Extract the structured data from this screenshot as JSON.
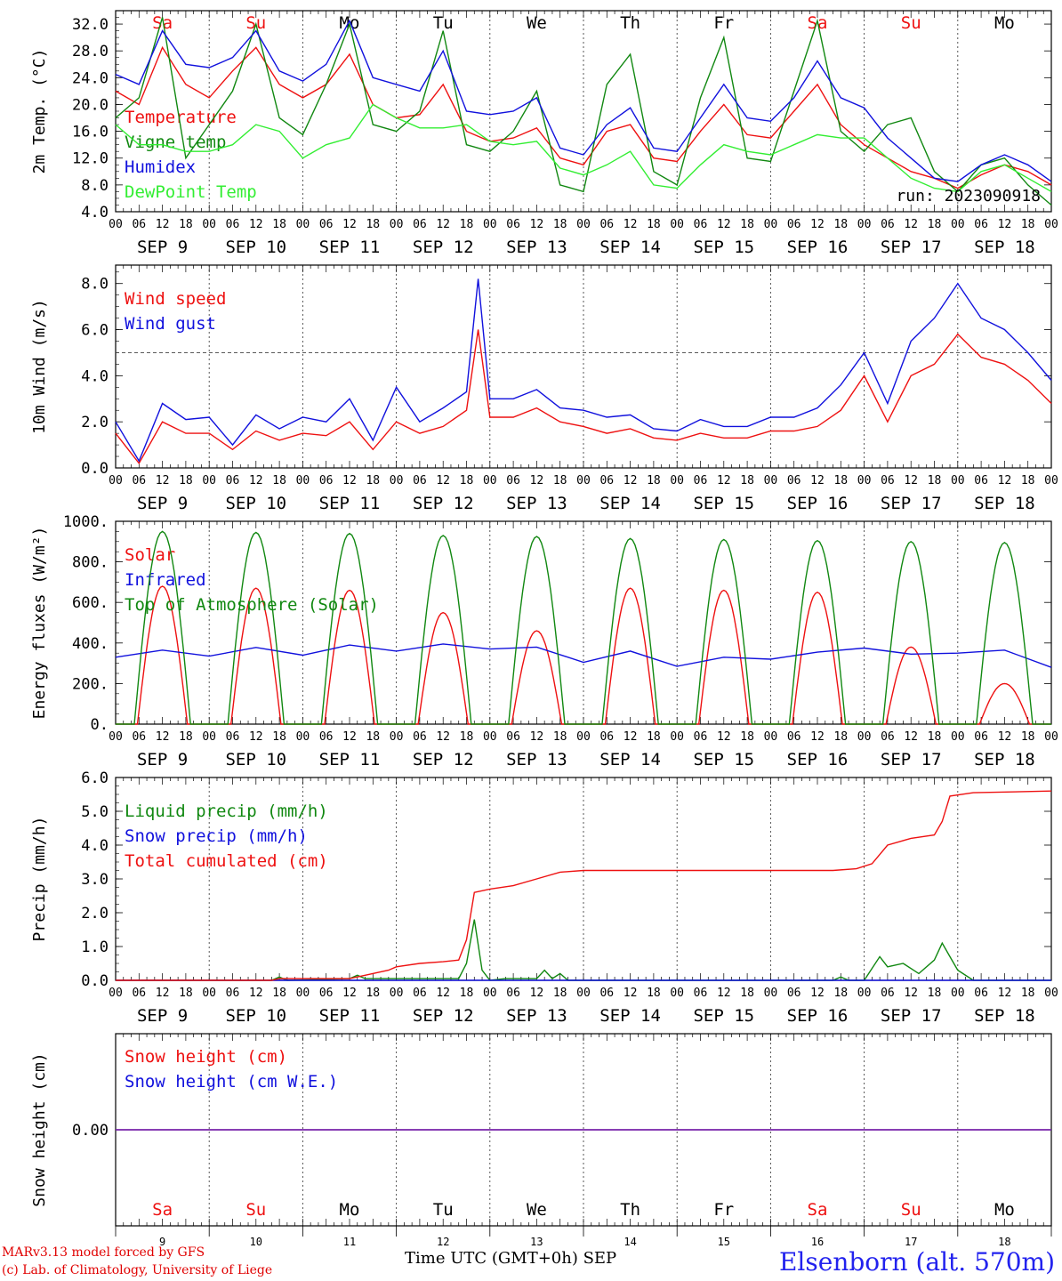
{
  "footer": {
    "model": "MARv3.13 model forced by GFS",
    "copyright": "(c) Lab. of Climatology, University of Liege",
    "time_axis": "Time UTC (GMT+0h) SEP",
    "station": "Elsenborn (alt. 570m)"
  },
  "colors": {
    "red": "#ee1111",
    "dark_green": "#118811",
    "blue": "#1111dd",
    "light_green": "#33ee33",
    "purple": "#7722aa"
  },
  "days": [
    "Sa",
    "Su",
    "Mo",
    "Tu",
    "We",
    "Th",
    "Fr",
    "Sa",
    "Su",
    "Mo"
  ],
  "weekend_flags": [
    true,
    true,
    false,
    false,
    false,
    false,
    false,
    true,
    true,
    false
  ],
  "dates": [
    "SEP  9",
    "SEP 10",
    "SEP 11",
    "SEP 12",
    "SEP 13",
    "SEP 14",
    "SEP 15",
    "SEP 16",
    "SEP 17",
    "SEP 18"
  ],
  "day_numbers": [
    "9",
    "10",
    "11",
    "12",
    "13",
    "14",
    "15",
    "16",
    "17",
    "18"
  ],
  "hour_ticks": [
    "00",
    "06",
    "12",
    "18"
  ],
  "chart_data": [
    {
      "type": "line",
      "ylabel": "2m Temp. (°C)",
      "ylim": [
        4,
        34
      ],
      "ytick_labels": [
        "4.0",
        "8.0",
        "12.0",
        "16.0",
        "20.0",
        "24.0",
        "28.0",
        "32.0"
      ],
      "annotation": "run: 2023090918",
      "x_unit": "hours since SEP 9 00 UTC",
      "series": [
        {
          "name": "Temperature",
          "color": "#ee1111",
          "x": [
            0,
            6,
            12,
            18,
            24,
            30,
            36,
            42,
            48,
            54,
            60,
            66,
            72,
            78,
            84,
            90,
            96,
            102,
            108,
            114,
            120,
            126,
            132,
            138,
            144,
            150,
            156,
            162,
            168,
            174,
            180,
            186,
            192,
            198,
            204,
            210,
            216,
            222,
            228,
            234,
            240
          ],
          "values": [
            22,
            20,
            28.5,
            23,
            21,
            25,
            28.5,
            23,
            21,
            23,
            27.5,
            20,
            18,
            18.5,
            23,
            16,
            14.5,
            15,
            16.5,
            12,
            11,
            16,
            17,
            12,
            11.5,
            16,
            20,
            15.5,
            15,
            19,
            23,
            17,
            14,
            12,
            10,
            9,
            7.5,
            9.5,
            11,
            10,
            8
          ]
        },
        {
          "name": "Vigne temp",
          "color": "#118811",
          "x": [
            0,
            6,
            12,
            18,
            24,
            30,
            36,
            42,
            48,
            54,
            60,
            66,
            72,
            78,
            84,
            90,
            96,
            102,
            108,
            114,
            120,
            126,
            132,
            138,
            144,
            150,
            156,
            162,
            168,
            174,
            180,
            186,
            192,
            198,
            204,
            210,
            216,
            222,
            228,
            234,
            240
          ],
          "values": [
            18,
            21,
            33,
            12,
            17,
            22,
            32,
            18,
            15.5,
            23,
            32,
            17,
            16,
            19,
            31,
            14,
            13,
            16,
            22,
            8,
            7,
            23,
            27.5,
            10,
            8,
            21,
            30,
            12,
            11.5,
            22,
            32.5,
            16,
            13,
            17,
            18,
            10,
            7,
            11,
            12,
            8,
            5
          ]
        },
        {
          "name": "Humidex",
          "color": "#1111dd",
          "x": [
            0,
            6,
            12,
            18,
            24,
            30,
            36,
            42,
            48,
            54,
            60,
            66,
            72,
            78,
            84,
            90,
            96,
            102,
            108,
            114,
            120,
            126,
            132,
            138,
            144,
            150,
            156,
            162,
            168,
            174,
            180,
            186,
            192,
            198,
            204,
            210,
            216,
            222,
            228,
            234,
            240
          ],
          "values": [
            24.5,
            23,
            31,
            26,
            25.5,
            27,
            31,
            25,
            23.5,
            26,
            32.5,
            24,
            23,
            22,
            28,
            19,
            18.5,
            19,
            21,
            13.5,
            12.5,
            17,
            19.5,
            13.5,
            13,
            18,
            23,
            18,
            17.5,
            21,
            26.5,
            21,
            19.5,
            15,
            12,
            9,
            8.5,
            11,
            12.5,
            11,
            8.5
          ]
        },
        {
          "name": "DewPoint Temp",
          "color": "#33ee33",
          "x": [
            0,
            6,
            12,
            18,
            24,
            30,
            36,
            42,
            48,
            54,
            60,
            66,
            72,
            78,
            84,
            90,
            96,
            102,
            108,
            114,
            120,
            126,
            132,
            138,
            144,
            150,
            156,
            162,
            168,
            174,
            180,
            186,
            192,
            198,
            204,
            210,
            216,
            222,
            228,
            234,
            240
          ],
          "values": [
            17,
            14,
            14,
            13,
            13,
            14,
            17,
            16,
            12,
            14,
            15,
            20,
            18,
            16.5,
            16.5,
            17,
            14.5,
            14,
            14.5,
            10.5,
            9.5,
            11,
            13,
            8,
            7.5,
            11,
            14,
            13,
            12.5,
            14,
            15.5,
            15,
            15,
            12,
            9,
            7.5,
            7,
            10,
            11,
            9,
            7
          ]
        }
      ]
    },
    {
      "type": "line",
      "ylabel": "10m Wind (m/s)",
      "ylim": [
        0,
        8.8
      ],
      "ytick_labels": [
        "0.0",
        "2.0",
        "4.0",
        "6.0",
        "8.0"
      ],
      "reference_line": 5,
      "x_unit": "hours since SEP 9 00 UTC",
      "series": [
        {
          "name": "Wind speed",
          "color": "#ee1111",
          "x": [
            0,
            6,
            12,
            18,
            24,
            30,
            36,
            42,
            48,
            54,
            60,
            66,
            72,
            78,
            84,
            90,
            93,
            96,
            102,
            108,
            114,
            120,
            126,
            132,
            138,
            144,
            150,
            156,
            162,
            168,
            174,
            180,
            186,
            192,
            198,
            204,
            210,
            216,
            222,
            228,
            234,
            240
          ],
          "values": [
            1.5,
            0.2,
            2,
            1.5,
            1.5,
            0.8,
            1.6,
            1.2,
            1.5,
            1.4,
            2,
            0.8,
            2,
            1.5,
            1.8,
            2.5,
            6,
            2.2,
            2.2,
            2.6,
            2,
            1.8,
            1.5,
            1.7,
            1.3,
            1.2,
            1.5,
            1.3,
            1.3,
            1.6,
            1.6,
            1.8,
            2.5,
            4,
            2,
            4,
            4.5,
            5.8,
            4.8,
            4.5,
            3.8,
            2.8
          ]
        },
        {
          "name": "Wind gust",
          "color": "#1111dd",
          "x": [
            0,
            6,
            12,
            18,
            24,
            30,
            36,
            42,
            48,
            54,
            60,
            66,
            72,
            78,
            84,
            90,
            93,
            96,
            102,
            108,
            114,
            120,
            126,
            132,
            138,
            144,
            150,
            156,
            162,
            168,
            174,
            180,
            186,
            192,
            198,
            204,
            210,
            216,
            222,
            228,
            234,
            240
          ],
          "values": [
            2,
            0.3,
            2.8,
            2.1,
            2.2,
            1,
            2.3,
            1.7,
            2.2,
            2,
            3,
            1.2,
            3.5,
            2,
            2.6,
            3.3,
            8.2,
            3,
            3,
            3.4,
            2.6,
            2.5,
            2.2,
            2.3,
            1.7,
            1.6,
            2.1,
            1.8,
            1.8,
            2.2,
            2.2,
            2.6,
            3.6,
            5,
            2.8,
            5.5,
            6.5,
            8,
            6.5,
            6,
            5,
            3.8
          ]
        }
      ]
    },
    {
      "type": "line",
      "ylabel": "Energy fluxes (W/m²)",
      "ylim": [
        0,
        1000
      ],
      "ytick_labels": [
        "0.",
        "200.",
        "400.",
        "600.",
        "800.",
        "1000."
      ],
      "x_unit": "hours since SEP 9 00 UTC",
      "series": [
        {
          "name": "Solar",
          "color": "#ee1111",
          "day_peaks": [
            680,
            670,
            660,
            550,
            460,
            670,
            660,
            650,
            380,
            200
          ]
        },
        {
          "name": "Infrared",
          "color": "#1111dd",
          "x": [
            0,
            12,
            24,
            36,
            48,
            60,
            72,
            84,
            96,
            108,
            120,
            132,
            144,
            156,
            168,
            180,
            192,
            204,
            216,
            228,
            240
          ],
          "values": [
            330,
            365,
            335,
            378,
            340,
            390,
            360,
            395,
            370,
            380,
            305,
            360,
            285,
            330,
            320,
            355,
            375,
            345,
            350,
            365,
            280
          ]
        },
        {
          "name": "Top of Atmosphere (Solar)",
          "color": "#118811",
          "day_peaks": [
            950,
            945,
            940,
            930,
            925,
            915,
            910,
            905,
            900,
            895
          ]
        }
      ]
    },
    {
      "type": "line",
      "ylabel": "Precip (mm/h)",
      "ylim": [
        0,
        6
      ],
      "ytick_labels": [
        "0.0",
        "1.0",
        "2.0",
        "3.0",
        "4.0",
        "5.0",
        "6.0"
      ],
      "x_unit": "hours since SEP 9 00 UTC",
      "series": [
        {
          "name": "Liquid precip (mm/h)",
          "color": "#118811",
          "x": [
            0,
            40,
            42,
            44,
            60,
            62,
            64,
            72,
            88,
            90,
            92,
            94,
            96,
            100,
            108,
            110,
            112,
            114,
            116,
            120,
            184,
            186,
            188,
            192,
            196,
            198,
            202,
            206,
            210,
            212,
            214,
            216,
            220,
            240
          ],
          "values": [
            0,
            0,
            0.1,
            0,
            0.05,
            0.15,
            0.05,
            0.05,
            0.05,
            0.5,
            1.8,
            0.3,
            0,
            0.05,
            0.05,
            0.3,
            0.05,
            0.2,
            0,
            0,
            0,
            0.1,
            0,
            0,
            0.7,
            0.4,
            0.5,
            0.2,
            0.6,
            1.1,
            0.7,
            0.3,
            0,
            0
          ]
        },
        {
          "name": "Snow precip (mm/h)",
          "color": "#1111dd",
          "x": [
            0,
            240
          ],
          "values": [
            0,
            0
          ]
        },
        {
          "name": "Total cumulated (cm)",
          "color": "#ee1111",
          "x": [
            0,
            40,
            42,
            60,
            64,
            70,
            72,
            78,
            84,
            88,
            90,
            92,
            96,
            102,
            108,
            114,
            120,
            160,
            184,
            190,
            194,
            198,
            204,
            210,
            212,
            214,
            220,
            240
          ],
          "values": [
            0,
            0,
            0.05,
            0.05,
            0.15,
            0.3,
            0.4,
            0.5,
            0.55,
            0.6,
            1.2,
            2.6,
            2.7,
            2.8,
            3,
            3.2,
            3.25,
            3.25,
            3.25,
            3.3,
            3.45,
            4,
            4.2,
            4.3,
            4.7,
            5.45,
            5.55,
            5.6
          ]
        }
      ]
    },
    {
      "type": "line",
      "ylabel": "Snow height (cm)",
      "ytick_labels": [
        "0.00"
      ],
      "x_unit": "hours since SEP 9 00 UTC",
      "series": [
        {
          "name": "Snow height (cm)",
          "color": "#ee1111",
          "x": [
            0,
            240
          ],
          "values": [
            0,
            0
          ]
        },
        {
          "name": "Snow height (cm W.E.)",
          "color": "#1111dd",
          "x": [
            0,
            240
          ],
          "values": [
            0,
            0
          ]
        }
      ]
    }
  ]
}
